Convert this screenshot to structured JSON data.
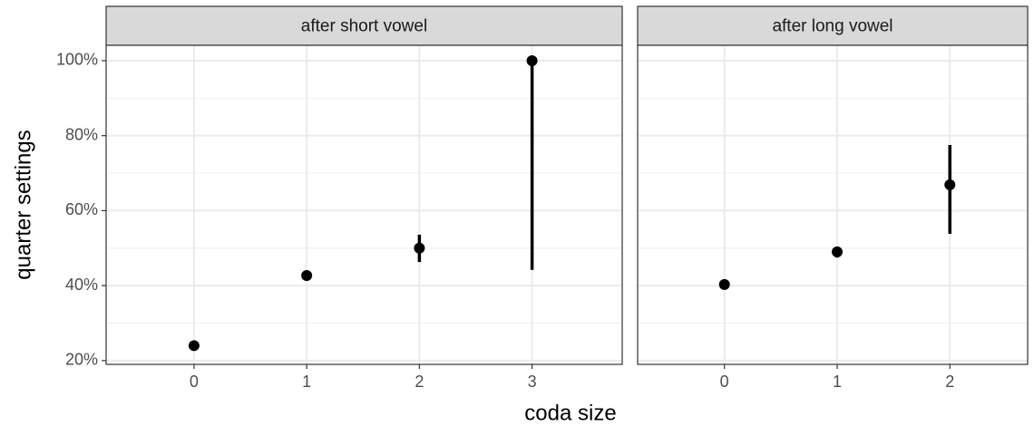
{
  "chart_data": [
    {
      "type": "scatter",
      "title": "after short vowel",
      "xlabel": "coda size",
      "ylabel": "quarter settings",
      "x": [
        0,
        1,
        2,
        3
      ],
      "values": [
        24,
        42.7,
        50,
        100
      ],
      "lower": [
        null,
        null,
        46.3,
        44.2
      ],
      "upper": [
        null,
        null,
        53.6,
        100
      ],
      "color": "#000000",
      "xlim": [
        -0.78,
        3.8
      ],
      "xticks": [
        0,
        1,
        2,
        3
      ],
      "ylim": [
        19,
        104.1
      ],
      "yticks": [
        {
          "value": 20,
          "label": "20%"
        },
        {
          "value": 40,
          "label": "40%"
        },
        {
          "value": 60,
          "label": "60%"
        },
        {
          "value": 80,
          "label": "80%"
        },
        {
          "value": 100,
          "label": "100%"
        }
      ],
      "minor_yticks": [
        30,
        50,
        70,
        90
      ],
      "grid": true
    },
    {
      "type": "scatter",
      "title": "after long vowel",
      "x": [
        0,
        1,
        2
      ],
      "values": [
        40.3,
        49,
        66.9
      ],
      "lower": [
        null,
        47.5,
        53.8
      ],
      "upper": [
        null,
        50.4,
        77.5
      ],
      "color": "#000000",
      "xlim": [
        -0.77,
        2.69
      ],
      "xticks": [
        0,
        1,
        2
      ],
      "ylim": [
        19,
        104.1
      ],
      "yticks": [
        20,
        40,
        60,
        80,
        100
      ],
      "minor_yticks": [
        30,
        50,
        70,
        90
      ],
      "grid": true
    }
  ]
}
